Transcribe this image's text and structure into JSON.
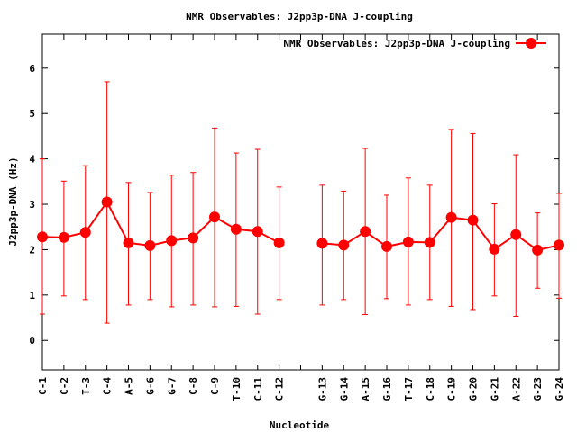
{
  "chart_data": {
    "type": "line",
    "title": "NMR Observables: J2pp3p-DNA J-coupling",
    "xlabel": "Nucleotide",
    "ylabel": "J2pp3p-DNA (Hz)",
    "ylim": [
      -0.65,
      6.75
    ],
    "yticks": [
      0,
      1,
      2,
      3,
      4,
      5,
      6
    ],
    "grid": false,
    "legend_position": "top-right",
    "categories": [
      "C-1",
      "C-2",
      "T-3",
      "C-4",
      "A-5",
      "G-6",
      "G-7",
      "C-8",
      "C-9",
      "T-10",
      "C-11",
      "C-12",
      "",
      "G-13",
      "G-14",
      "A-15",
      "G-16",
      "T-17",
      "C-18",
      "C-19",
      "G-20",
      "G-21",
      "A-22",
      "G-23",
      "G-24"
    ],
    "series": [
      {
        "name": "NMR Observables: J2pp3p-DNA J-coupling",
        "color": "#ff0000",
        "values": [
          2.28,
          2.27,
          2.38,
          3.05,
          2.15,
          2.09,
          2.2,
          2.26,
          2.72,
          2.45,
          2.4,
          2.15,
          null,
          2.14,
          2.1,
          2.4,
          2.07,
          2.17,
          2.16,
          2.71,
          2.65,
          2.01,
          2.33,
          1.99,
          2.1
        ],
        "err_low": [
          0.58,
          0.98,
          0.9,
          0.38,
          0.78,
          0.9,
          0.74,
          0.78,
          0.74,
          0.75,
          0.58,
          0.9,
          null,
          0.78,
          0.9,
          0.57,
          0.92,
          0.78,
          0.9,
          0.75,
          0.68,
          0.98,
          0.53,
          1.15,
          0.93
        ],
        "err_high": [
          4.0,
          3.51,
          3.85,
          5.7,
          3.48,
          3.26,
          3.64,
          3.7,
          4.68,
          4.13,
          4.21,
          3.38,
          null,
          3.42,
          3.29,
          4.23,
          3.2,
          3.58,
          3.42,
          4.65,
          4.56,
          3.01,
          4.09,
          2.81,
          3.24
        ]
      }
    ]
  }
}
